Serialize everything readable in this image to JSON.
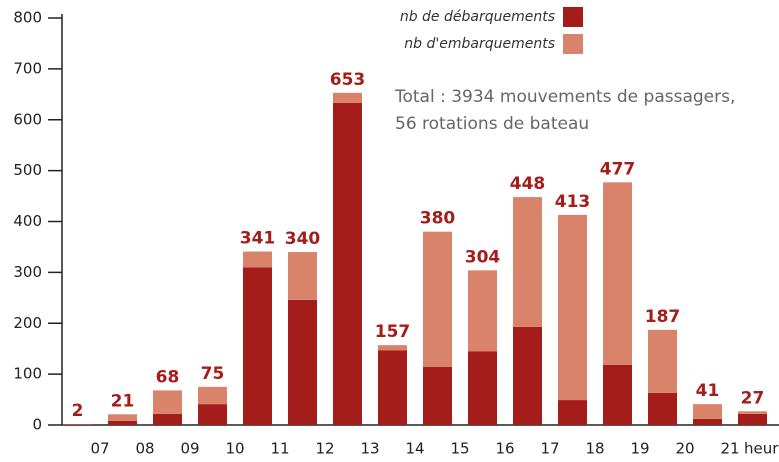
{
  "chart_data": {
    "type": "stacked_bar",
    "categories": [
      null,
      null,
      null,
      null,
      null,
      null,
      null,
      null,
      null,
      null,
      null,
      null,
      null,
      null,
      null,
      null
    ],
    "hour_labels": [
      "07",
      "08",
      "09",
      "10",
      "11",
      "12",
      "13",
      "14",
      "15",
      "16",
      "17",
      "18",
      "19",
      "20",
      "21"
    ],
    "x_label": "heures",
    "series": [
      {
        "name": "nb de débarquements",
        "color": "#a51d1a",
        "values": [
          1,
          8,
          22,
          41,
          310,
          246,
          633,
          147,
          114,
          145,
          193,
          49,
          118,
          63,
          12,
          22
        ]
      },
      {
        "name": "nb d'embarquements",
        "color": "#d9846a",
        "values": [
          1,
          13,
          46,
          34,
          31,
          94,
          20,
          10,
          266,
          159,
          255,
          364,
          359,
          124,
          29,
          5
        ]
      }
    ],
    "totals": [
      2,
      21,
      68,
      75,
      341,
      340,
      653,
      157,
      380,
      304,
      448,
      413,
      477,
      187,
      41,
      27
    ],
    "annotations": [
      "Total : 3934 mouvements de passagers,",
      "56 rotations de bateau"
    ],
    "ylim": [
      0,
      800
    ],
    "yticks": [
      0,
      100,
      200,
      300,
      400,
      500,
      600,
      700,
      800
    ]
  }
}
